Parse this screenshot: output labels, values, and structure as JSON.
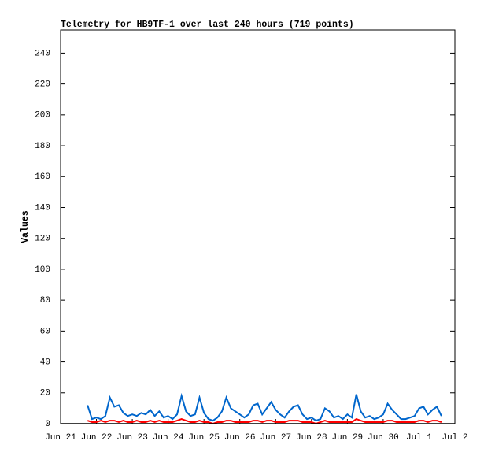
{
  "chart_data": {
    "type": "line",
    "title": "Telemetry for HB9TF-1 over last 240 hours (719 points)",
    "ylabel": "Values",
    "x": [
      0.75,
      0.875,
      1.0,
      1.125,
      1.25,
      1.375,
      1.5,
      1.625,
      1.75,
      1.875,
      2.0,
      2.125,
      2.25,
      2.375,
      2.5,
      2.625,
      2.75,
      2.875,
      3.0,
      3.125,
      3.25,
      3.375,
      3.5,
      3.625,
      3.75,
      3.875,
      4.0,
      4.125,
      4.25,
      4.375,
      4.5,
      4.625,
      4.75,
      4.875,
      5.0,
      5.125,
      5.25,
      5.375,
      5.5,
      5.625,
      5.75,
      5.875,
      6.0,
      6.125,
      6.25,
      6.375,
      6.5,
      6.625,
      6.75,
      6.875,
      7.0,
      7.125,
      7.25,
      7.375,
      7.5,
      7.625,
      7.75,
      7.875,
      8.0,
      8.125,
      8.25,
      8.375,
      8.5,
      8.625,
      8.75,
      8.875,
      9.0,
      9.125,
      9.25,
      9.375,
      9.5,
      9.625,
      9.75,
      9.875,
      10.0,
      10.125,
      10.25,
      10.375,
      10.5,
      10.625
    ],
    "series": [
      {
        "color": "#0066cc",
        "values": [
          12,
          3,
          4,
          3,
          5,
          17,
          11,
          12,
          7,
          5,
          6,
          5,
          7,
          6,
          9,
          5,
          8,
          4,
          5,
          3,
          6,
          18,
          8,
          5,
          6,
          17,
          7,
          3,
          2,
          4,
          8,
          17,
          10,
          8,
          6,
          4,
          6,
          12,
          13,
          6,
          10,
          14,
          9,
          6,
          4,
          8,
          11,
          12,
          6,
          3,
          4,
          2,
          3,
          10,
          8,
          4,
          5,
          3,
          6,
          4,
          19,
          8,
          4,
          5,
          3,
          4,
          6,
          13,
          9,
          6,
          3,
          3,
          4,
          5,
          10,
          11,
          6,
          9,
          11,
          5
        ]
      },
      {
        "color": "#ff0000",
        "values": [
          2,
          1,
          1,
          2,
          1,
          2,
          2,
          1,
          2,
          1,
          1,
          2,
          1,
          1,
          2,
          1,
          2,
          1,
          1,
          1,
          2,
          3,
          2,
          1,
          1,
          2,
          1,
          1,
          0,
          1,
          1,
          2,
          2,
          1,
          1,
          1,
          1,
          2,
          2,
          1,
          2,
          2,
          1,
          1,
          1,
          2,
          2,
          2,
          1,
          1,
          1,
          0,
          1,
          2,
          1,
          1,
          1,
          1,
          1,
          1,
          3,
          2,
          1,
          1,
          1,
          1,
          1,
          2,
          2,
          1,
          1,
          1,
          1,
          1,
          2,
          2,
          1,
          2,
          2,
          1
        ]
      }
    ],
    "xlim": [
      0,
      11
    ],
    "xticks": [
      {
        "value": 0,
        "label": "Jun 21"
      },
      {
        "value": 1,
        "label": "Jun 22"
      },
      {
        "value": 2,
        "label": "Jun 23"
      },
      {
        "value": 3,
        "label": "Jun 24"
      },
      {
        "value": 4,
        "label": "Jun 25"
      },
      {
        "value": 5,
        "label": "Jun 26"
      },
      {
        "value": 6,
        "label": "Jun 27"
      },
      {
        "value": 7,
        "label": "Jun 28"
      },
      {
        "value": 8,
        "label": "Jun 29"
      },
      {
        "value": 9,
        "label": "Jun 30"
      },
      {
        "value": 10,
        "label": "Jul 1"
      },
      {
        "value": 11,
        "label": "Jul 2"
      }
    ],
    "ylim": [
      0,
      255
    ],
    "yticks": [
      0,
      20,
      40,
      60,
      80,
      100,
      120,
      140,
      160,
      180,
      200,
      220,
      240
    ]
  }
}
